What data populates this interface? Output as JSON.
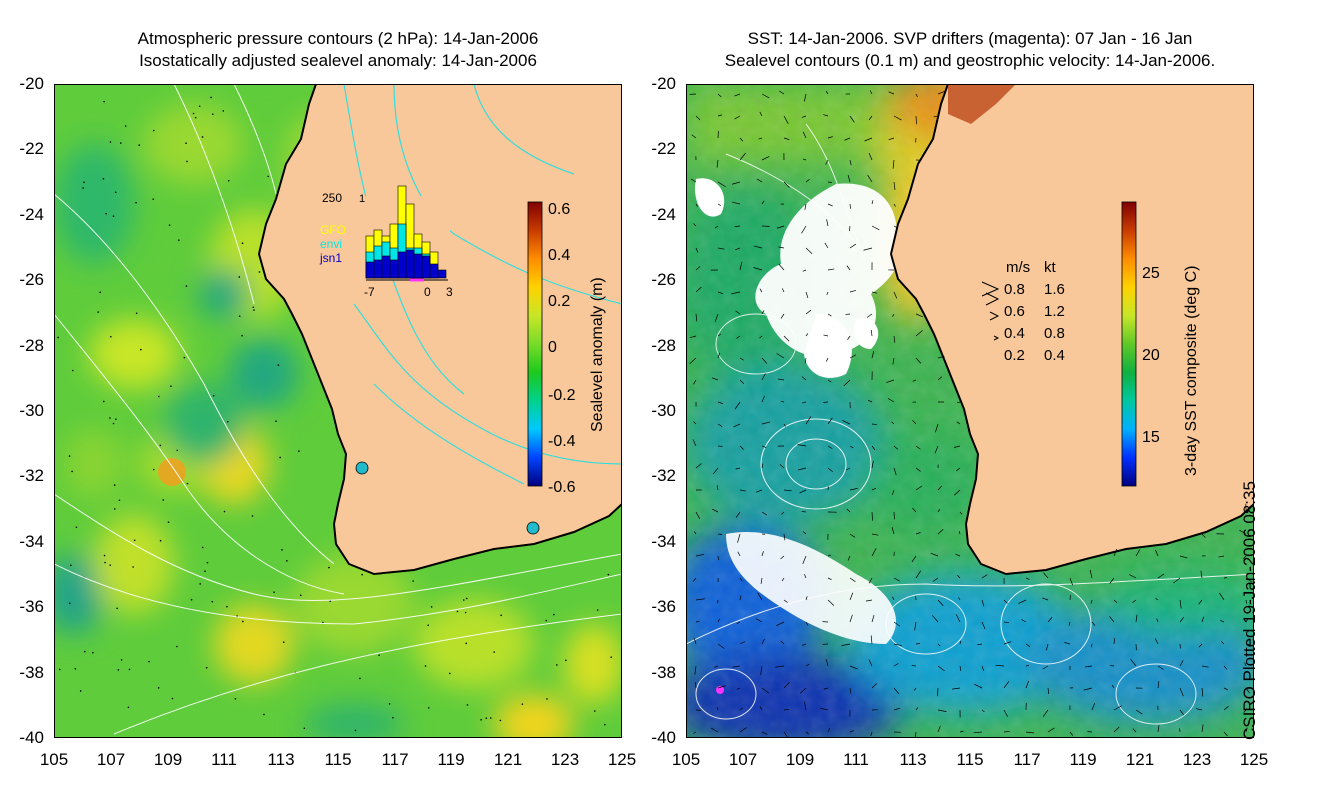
{
  "left_panel": {
    "title_line1": "Atmospheric pressure contours (2 hPa): 14-Jan-2006",
    "title_line2": "Isostatically adjusted sealevel anomaly: 14-Jan-2006",
    "colorbar": {
      "label": "Sealevel anomaly (m)",
      "ticks": [
        "0.6",
        "0.4",
        "0.2",
        "0",
        "-0.2",
        "-0.4",
        "-0.6"
      ],
      "range": [
        -0.6,
        0.6
      ],
      "colors": [
        "#00007f",
        "#0044ff",
        "#00c8ff",
        "#00d28c",
        "#1ec81e",
        "#78dc28",
        "#c8e628",
        "#ffd200",
        "#ff8c00",
        "#c83c00",
        "#800000"
      ]
    },
    "inset_histogram": {
      "y_top_label": "250",
      "y_mid_label": "1",
      "x_labels": [
        "-7",
        "0",
        "3"
      ],
      "legend": [
        {
          "name": "GFO",
          "color": "#ffff00"
        },
        {
          "name": "envi",
          "color": "#00e6e6"
        },
        {
          "name": "jsn1",
          "color": "#0000cc"
        }
      ]
    }
  },
  "right_panel": {
    "title_line1": "SST: 14-Jan-2006. SVP drifters (magenta): 07 Jan - 16 Jan",
    "title_line2": "Sealevel contours (0.1 m) and geostrophic velocity: 14-Jan-2006.",
    "colorbar": {
      "label": "3-day SST composite (deg C)",
      "ticks": [
        "25",
        "20",
        "15"
      ],
      "range": [
        12,
        29
      ],
      "colors": [
        "#00007f",
        "#0030ff",
        "#00b0ff",
        "#00c8a0",
        "#10b040",
        "#60c828",
        "#c8e628",
        "#ffd200",
        "#ff8c00",
        "#c83c00",
        "#800000"
      ]
    },
    "velocity_key": {
      "headers": [
        "m/s",
        "kt"
      ],
      "rows": [
        {
          "ms": "0.8",
          "kt": "1.6"
        },
        {
          "ms": "0.6",
          "kt": "1.2"
        },
        {
          "ms": "0.4",
          "kt": "0.8"
        },
        {
          "ms": "0.2",
          "kt": "0.4"
        }
      ]
    }
  },
  "axes": {
    "y_ticks": [
      "-20",
      "-22",
      "-24",
      "-26",
      "-28",
      "-30",
      "-32",
      "-34",
      "-36",
      "-38",
      "-40"
    ],
    "x_ticks": [
      "105",
      "107",
      "109",
      "111",
      "113",
      "115",
      "117",
      "119",
      "121",
      "123",
      "125"
    ],
    "lon_range": [
      105,
      125
    ],
    "lat_range": [
      -40,
      -20
    ]
  },
  "credit": "CSIRO Plotted 19-Jan-2006 08:35",
  "colors": {
    "land": "#f9c89a",
    "ocean_base_left": "#5fcc3c",
    "coastline": "#000000"
  }
}
